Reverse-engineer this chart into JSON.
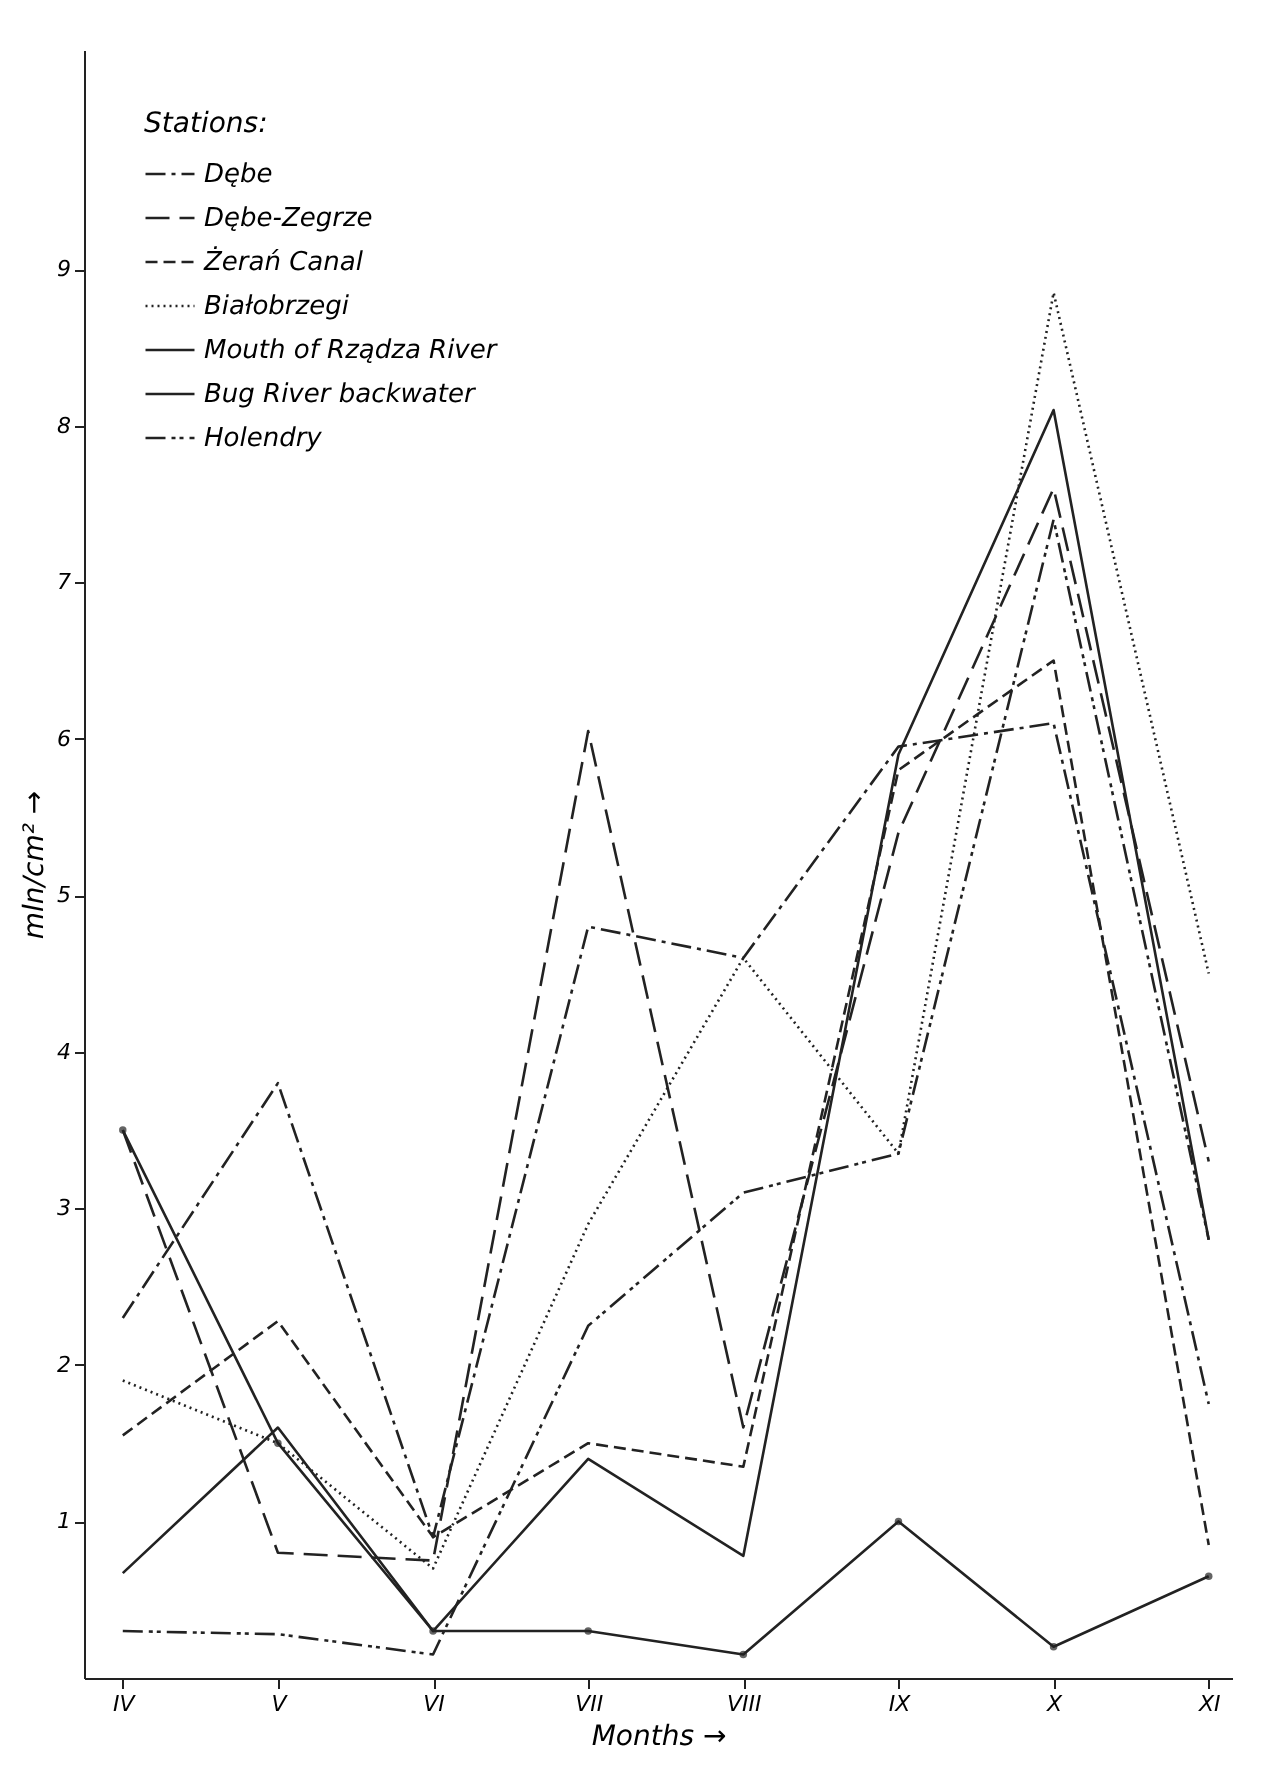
{
  "chart_data": {
    "type": "line",
    "xlabel": "Months →",
    "ylabel": "mln/cm² →",
    "legend_title": "Stations:",
    "legend": "top left",
    "grid": false,
    "categories": [
      "IV",
      "V",
      "VI",
      "VII",
      "VIII",
      "IX",
      "X",
      "XI"
    ],
    "ylim": [
      0,
      10.4
    ],
    "yticks": [
      1,
      2,
      3,
      4,
      5,
      6,
      7,
      8,
      9
    ],
    "series": [
      {
        "name": "Dębe",
        "color": "#222222",
        "line_style": "dashdot",
        "values": [
          2.3,
          3.8,
          0.9,
          4.8,
          4.6,
          5.95,
          6.1,
          1.75
        ]
      },
      {
        "name": "Dębe-Zegrze",
        "color": "#222222",
        "line_style": "longdash",
        "values": [
          3.5,
          0.8,
          0.75,
          6.05,
          1.6,
          5.4,
          7.6,
          3.3
        ]
      },
      {
        "name": "Żerań Canal",
        "color": "#222222",
        "line_style": "dashed",
        "values": [
          1.55,
          2.28,
          0.9,
          1.5,
          1.35,
          5.8,
          6.5,
          0.85
        ]
      },
      {
        "name": "Białobrzegi",
        "color": "#222222",
        "line_style": "dotted",
        "values": [
          1.9,
          1.5,
          0.7,
          2.9,
          4.6,
          3.35,
          8.85,
          4.5
        ]
      },
      {
        "name": "Mouth of Rządza River",
        "color": "#222222",
        "line_style": "solid",
        "values": [
          0.67,
          1.6,
          0.3,
          1.4,
          0.78,
          5.9,
          8.1,
          2.8
        ]
      },
      {
        "name": "Bug River backwater",
        "color": "#222222",
        "line_style": "solid",
        "marker": "circle",
        "values": [
          3.5,
          1.5,
          0.3,
          0.3,
          0.15,
          1.0,
          0.2,
          0.65
        ]
      },
      {
        "name": "Holendry",
        "color": "#222222",
        "line_style": "dashdotdot",
        "values": [
          0.3,
          0.28,
          0.15,
          2.25,
          3.1,
          3.35,
          7.4,
          2.8
        ]
      }
    ]
  }
}
